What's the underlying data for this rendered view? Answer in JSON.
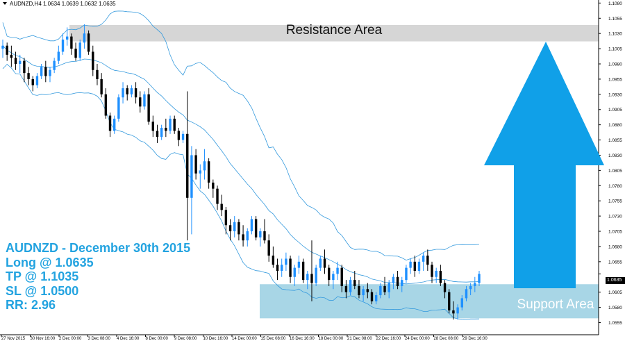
{
  "header": {
    "symbol_info": "AUDNZD,H4  1.0634 1.0639 1.0632 1.0635"
  },
  "annotations": {
    "resistance_label": "Resistance Area",
    "support_label": "Support Area",
    "trade_lines": [
      "AUDNZD - December 30th 2015",
      "Long @ 1.0635",
      "TP @ 1.1035",
      "SL @ 1.0500",
      "RR: 2.96"
    ],
    "current_price": "1.0635"
  },
  "colors": {
    "bull_candle": "#1e90ff",
    "bear_candle": "#000000",
    "bollinger": "#3399dd",
    "resistance_zone": "#d6d6d6",
    "support_zone": "#a8d6e6",
    "arrow": "#10a0e8",
    "trade_text": "#23a3e0"
  },
  "chart_data": {
    "type": "candlestick",
    "title": "AUDNZD,H4",
    "ylim": [
      1.0535,
      1.1085
    ],
    "y_ticks": [
      "1.1080",
      "1.1055",
      "1.1030",
      "1.1005",
      "1.0980",
      "1.0955",
      "1.0930",
      "1.0905",
      "1.0880",
      "1.0855",
      "1.0830",
      "1.0805",
      "1.0780",
      "1.0755",
      "1.0730",
      "1.0705",
      "1.0680",
      "1.0655",
      "1.0635",
      "1.0605",
      "1.0580",
      "1.0555"
    ],
    "x_ticks": [
      "27 Nov 2015",
      "30 Nov 16:00",
      "2 Dec 00:00",
      "3 Dec 08:00",
      "4 Dec 16:00",
      "8 Dec 00:00",
      "9 Dec 08:00",
      "10 Dec 16:00",
      "14 Dec 00:00",
      "15 Dec 08:00",
      "16 Dec 16:00",
      "18 Dec 00:00",
      "21 Dec 08:00",
      "22 Dec 16:00",
      "24 Dec 00:00",
      "28 Dec 08:00",
      "29 Dec 16:00"
    ],
    "resistance_zone": [
      1.1017,
      1.1044
    ],
    "support_zone": [
      1.0562,
      1.0618
    ],
    "trade": {
      "entry": 1.0635,
      "take_profit": 1.1035,
      "stop_loss": 1.05,
      "reward_risk": 2.96
    },
    "candles": [
      [
        1.1005,
        1.102,
        1.099,
        1.101
      ],
      [
        1.101,
        1.1015,
        1.0985,
        1.0995
      ],
      [
        1.0995,
        1.101,
        1.0975,
        1.099
      ],
      [
        1.099,
        1.1,
        1.097,
        1.098
      ],
      [
        1.098,
        1.0995,
        1.0965,
        1.0985
      ],
      [
        1.0985,
        1.099,
        1.095,
        1.0965
      ],
      [
        1.0965,
        1.0975,
        1.0945,
        1.0955
      ],
      [
        1.0955,
        1.096,
        1.0935,
        1.0945
      ],
      [
        1.0945,
        1.0965,
        1.094,
        1.096
      ],
      [
        1.096,
        1.098,
        1.0955,
        1.0975
      ],
      [
        1.0975,
        1.0985,
        1.095,
        1.096
      ],
      [
        1.096,
        1.0975,
        1.095,
        1.097
      ],
      [
        1.097,
        1.099,
        1.0965,
        1.0985
      ],
      [
        1.0985,
        1.101,
        1.098,
        1.1
      ],
      [
        1.1,
        1.103,
        1.0995,
        1.102
      ],
      [
        1.102,
        1.104,
        1.101,
        1.1025
      ],
      [
        1.1025,
        1.103,
        1.0995,
        1.1005
      ],
      [
        1.1005,
        1.1015,
        1.0985,
        1.099
      ],
      [
        1.099,
        1.102,
        1.0985,
        1.1015
      ],
      [
        1.1015,
        1.1045,
        1.1005,
        1.103
      ],
      [
        1.103,
        1.1035,
        1.0995,
        1.1
      ],
      [
        1.1,
        1.101,
        1.096,
        1.097
      ],
      [
        1.097,
        1.098,
        1.0945,
        1.0955
      ],
      [
        1.0955,
        1.0965,
        1.0925,
        1.093
      ],
      [
        1.093,
        1.094,
        1.089,
        1.0895
      ],
      [
        1.0895,
        1.09,
        1.086,
        1.087
      ],
      [
        1.087,
        1.0895,
        1.0865,
        1.089
      ],
      [
        1.089,
        1.093,
        1.0885,
        1.0925
      ],
      [
        1.0925,
        1.095,
        1.0915,
        1.094
      ],
      [
        1.094,
        1.0945,
        1.092,
        1.093
      ],
      [
        1.093,
        1.0945,
        1.0925,
        1.094
      ],
      [
        1.094,
        1.095,
        1.0915,
        1.0925
      ],
      [
        1.0925,
        1.0935,
        1.09,
        1.091
      ],
      [
        1.091,
        1.0935,
        1.0905,
        1.093
      ],
      [
        1.093,
        1.094,
        1.088,
        1.0885
      ],
      [
        1.0885,
        1.0895,
        1.086,
        1.087
      ],
      [
        1.087,
        1.088,
        1.085,
        1.086
      ],
      [
        1.086,
        1.088,
        1.0855,
        1.0875
      ],
      [
        1.0875,
        1.089,
        1.086,
        1.087
      ],
      [
        1.087,
        1.0895,
        1.0865,
        1.089
      ],
      [
        1.089,
        1.0895,
        1.0865,
        1.087
      ],
      [
        1.087,
        1.0875,
        1.0845,
        1.0855
      ],
      [
        1.0855,
        1.087,
        1.085,
        1.0865
      ],
      [
        1.0865,
        1.0935,
        1.069,
        1.076
      ],
      [
        1.076,
        1.0845,
        1.07,
        1.083
      ],
      [
        1.083,
        1.084,
        1.079,
        1.08
      ],
      [
        1.08,
        1.0815,
        1.0775,
        1.0805
      ],
      [
        1.0805,
        1.084,
        1.079,
        1.082
      ],
      [
        1.082,
        1.0825,
        1.0775,
        1.0785
      ],
      [
        1.0785,
        1.079,
        1.076,
        1.0775
      ],
      [
        1.0775,
        1.078,
        1.074,
        1.075
      ],
      [
        1.075,
        1.0765,
        1.073,
        1.074
      ],
      [
        1.074,
        1.0745,
        1.07,
        1.0715
      ],
      [
        1.0715,
        1.0725,
        1.069,
        1.0705
      ],
      [
        1.0705,
        1.073,
        1.0695,
        1.072
      ],
      [
        1.072,
        1.0725,
        1.069,
        1.07
      ],
      [
        1.07,
        1.0715,
        1.068,
        1.069
      ],
      [
        1.069,
        1.071,
        1.068,
        1.0705
      ],
      [
        1.0705,
        1.073,
        1.07,
        1.0725
      ],
      [
        1.0725,
        1.073,
        1.069,
        1.0695
      ],
      [
        1.0695,
        1.071,
        1.068,
        1.0705
      ],
      [
        1.0705,
        1.0725,
        1.0685,
        1.069
      ],
      [
        1.069,
        1.07,
        1.0655,
        1.0665
      ],
      [
        1.0665,
        1.068,
        1.0645,
        1.065
      ],
      [
        1.065,
        1.066,
        1.0625,
        1.064
      ],
      [
        1.064,
        1.066,
        1.063,
        1.065
      ],
      [
        1.065,
        1.067,
        1.064,
        1.066
      ],
      [
        1.066,
        1.0665,
        1.062,
        1.063
      ],
      [
        1.063,
        1.065,
        1.0615,
        1.0645
      ],
      [
        1.0645,
        1.0665,
        1.0635,
        1.0655
      ],
      [
        1.0655,
        1.066,
        1.062,
        1.0625
      ],
      [
        1.0625,
        1.064,
        1.061,
        1.0635
      ],
      [
        1.0635,
        1.069,
        1.059,
        1.062
      ],
      [
        1.062,
        1.065,
        1.0615,
        1.0645
      ],
      [
        1.0645,
        1.0665,
        1.064,
        1.066
      ],
      [
        1.066,
        1.0675,
        1.0635,
        1.0645
      ],
      [
        1.0645,
        1.065,
        1.0615,
        1.0625
      ],
      [
        1.0625,
        1.064,
        1.061,
        1.0635
      ],
      [
        1.0635,
        1.0655,
        1.0625,
        1.0645
      ],
      [
        1.0645,
        1.065,
        1.0605,
        1.0615
      ],
      [
        1.0615,
        1.0625,
        1.0595,
        1.0605
      ],
      [
        1.0605,
        1.063,
        1.06,
        1.0625
      ],
      [
        1.0625,
        1.064,
        1.061,
        1.0615
      ],
      [
        1.0615,
        1.0625,
        1.0595,
        1.06
      ],
      [
        1.06,
        1.0615,
        1.059,
        1.061
      ],
      [
        1.061,
        1.062,
        1.0595,
        1.0605
      ],
      [
        1.0605,
        1.061,
        1.0585,
        1.059
      ],
      [
        1.059,
        1.0605,
        1.0585,
        1.06
      ],
      [
        1.06,
        1.062,
        1.0595,
        1.0615
      ],
      [
        1.0615,
        1.063,
        1.06,
        1.0605
      ],
      [
        1.0605,
        1.0625,
        1.0595,
        1.062
      ],
      [
        1.062,
        1.0635,
        1.061,
        1.063
      ],
      [
        1.063,
        1.064,
        1.061,
        1.0615
      ],
      [
        1.0615,
        1.063,
        1.0605,
        1.0625
      ],
      [
        1.0625,
        1.065,
        1.062,
        1.0645
      ],
      [
        1.0645,
        1.066,
        1.0635,
        1.0655
      ],
      [
        1.0655,
        1.0665,
        1.063,
        1.064
      ],
      [
        1.064,
        1.066,
        1.0635,
        1.0655
      ],
      [
        1.0655,
        1.067,
        1.064,
        1.0665
      ],
      [
        1.0665,
        1.0675,
        1.064,
        1.065
      ],
      [
        1.065,
        1.0655,
        1.062,
        1.063
      ],
      [
        1.063,
        1.0645,
        1.062,
        1.064
      ],
      [
        1.064,
        1.065,
        1.0615,
        1.062
      ],
      [
        1.062,
        1.0625,
        1.0595,
        1.0605
      ],
      [
        1.0605,
        1.061,
        1.057,
        1.0575
      ],
      [
        1.0575,
        1.059,
        1.056,
        1.057
      ],
      [
        1.057,
        1.0585,
        1.056,
        1.058
      ],
      [
        1.058,
        1.06,
        1.0575,
        1.0595
      ],
      [
        1.0595,
        1.0615,
        1.059,
        1.061
      ],
      [
        1.061,
        1.062,
        1.06,
        1.0615
      ],
      [
        1.0615,
        1.063,
        1.0605,
        1.062
      ],
      [
        1.062,
        1.064,
        1.0615,
        1.0635
      ]
    ]
  }
}
